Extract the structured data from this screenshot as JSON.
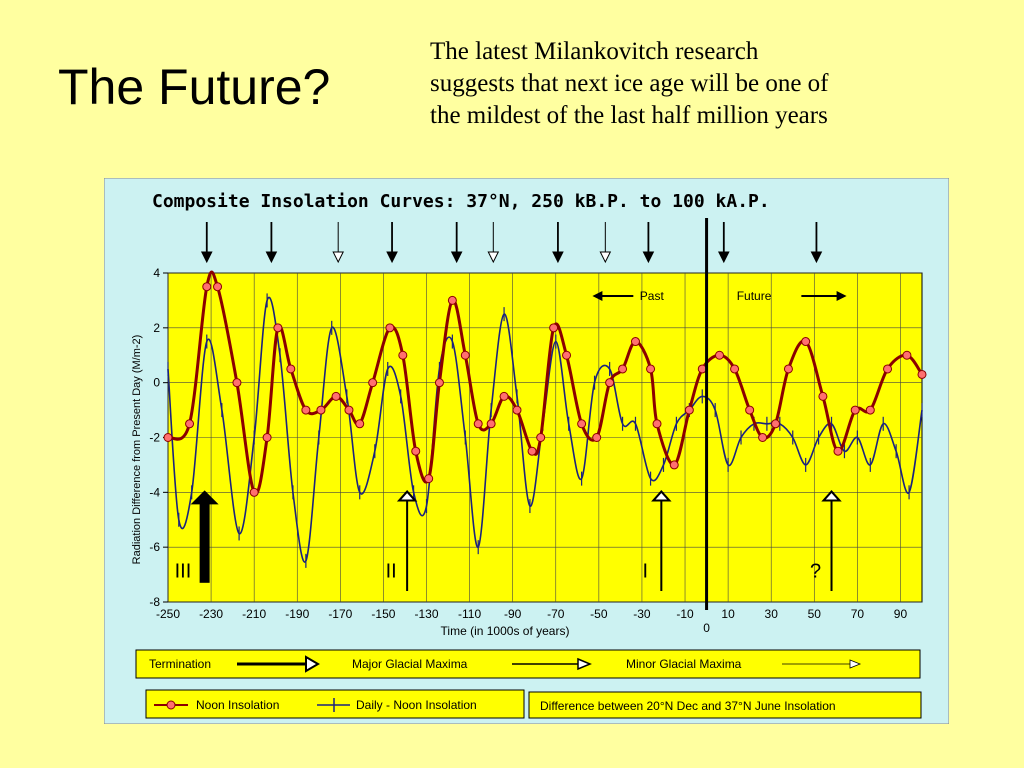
{
  "slide": {
    "title": "The Future?",
    "lines": [
      "The latest Milankovitch research",
      "suggests that next ice age will be one of",
      "the mildest of the last half million years"
    ]
  },
  "colors": {
    "background": "#ffffa0",
    "figure_background": "#ccf2f2",
    "plot_background": "#ffff00",
    "legend_background": "#ffff00",
    "noon": "#8b0000",
    "noon_marker": "#ff7070",
    "daily": "#1a237e"
  },
  "chart_data": {
    "type": "line",
    "title": "Composite Insolation Curves: 37°N, 250 kB.P. to 100 kA.P.",
    "xlabel": "Time (in 1000s of years)",
    "ylabel": "Radiation Difference from Present Day (M/m-2)",
    "xlim": [
      -250,
      100
    ],
    "ylim": [
      -8,
      4
    ],
    "yticks": [
      "4",
      "2",
      "0",
      "-2",
      "-4",
      "-6",
      "-8"
    ],
    "xticks": [
      "-250",
      "-230",
      "-210",
      "-190",
      "-170",
      "-150",
      "-130",
      "-110",
      "-90",
      "-70",
      "-50",
      "-30",
      "-10",
      "10",
      "30",
      "50",
      "70",
      "90"
    ],
    "zero_label": "0",
    "grid": true,
    "present_line_x": 0,
    "series": [
      {
        "name": "Noon Insolation",
        "x": [
          -250,
          -240,
          -232,
          -227,
          -218,
          -210,
          -204,
          -199,
          -193,
          -186,
          -179,
          -172,
          -166,
          -161,
          -155,
          -147,
          -141,
          -135,
          -129,
          -124,
          -118,
          -112,
          -106,
          -100,
          -94,
          -88,
          -81,
          -77,
          -71,
          -65,
          -58,
          -51,
          -45,
          -39,
          -33,
          -26,
          -23,
          -15,
          -8,
          -2,
          6,
          13,
          20,
          26,
          32,
          38,
          46,
          54,
          61,
          69,
          76,
          84,
          93,
          100
        ],
        "y": [
          -2,
          -1.5,
          3.5,
          3.5,
          0,
          -4,
          -2,
          2,
          0.5,
          -1,
          -1,
          -0.5,
          -1,
          -1.5,
          0,
          2,
          1,
          -2.5,
          -3.5,
          0,
          3,
          1,
          -1.5,
          -1.5,
          -0.5,
          -1,
          -2.5,
          -2,
          2,
          1,
          -1.5,
          -2,
          0,
          0.5,
          1.5,
          0.5,
          -1.5,
          -3,
          -1,
          0.5,
          1,
          0.5,
          -1,
          -2,
          -1.5,
          0.5,
          1.5,
          -0.5,
          -2.5,
          -1,
          -1,
          0.5,
          1,
          0.3
        ]
      },
      {
        "name": "Daily - Noon Insolation",
        "x": [
          -250,
          -245,
          -239,
          -232,
          -225,
          -217,
          -210,
          -204,
          -198,
          -192,
          -186,
          -180,
          -174,
          -167,
          -161,
          -154,
          -148,
          -142,
          -136,
          -130,
          -124,
          -118,
          -112,
          -106,
          -100,
          -94,
          -88,
          -82,
          -76,
          -70,
          -64,
          -58,
          -52,
          -45,
          -39,
          -33,
          -26,
          -20,
          -14,
          -8,
          -2,
          4,
          10,
          16,
          22,
          28,
          34,
          40,
          46,
          52,
          58,
          64,
          70,
          76,
          82,
          88,
          94,
          100
        ],
        "y": [
          0.5,
          -5,
          -4,
          1.5,
          -1,
          -5.5,
          -2,
          3,
          1,
          -4,
          -6.5,
          -2,
          2,
          -0.5,
          -4,
          -2.5,
          0.5,
          -0.5,
          -4,
          -4.5,
          0.5,
          1.5,
          -2,
          -6,
          -1,
          2.5,
          -0.5,
          -4.5,
          -1.5,
          1.5,
          -1.5,
          -3.5,
          0,
          0.5,
          -1.5,
          -1.5,
          -3.5,
          -3,
          -1.5,
          -1,
          -0.5,
          -1,
          -3,
          -2,
          -1.5,
          -1.5,
          -1.5,
          -2,
          -3,
          -2,
          -1.5,
          -2.5,
          -2,
          -3,
          -1.5,
          -2.5,
          -4,
          -1
        ]
      }
    ],
    "arrows_top": [
      {
        "x": -232,
        "style": "filled"
      },
      {
        "x": -202,
        "style": "filled"
      },
      {
        "x": -171,
        "style": "open"
      },
      {
        "x": -146,
        "style": "filled"
      },
      {
        "x": -116,
        "style": "filled"
      },
      {
        "x": -99,
        "style": "open"
      },
      {
        "x": -69,
        "style": "filled"
      },
      {
        "x": -47,
        "style": "open"
      },
      {
        "x": -27,
        "style": "filled"
      },
      {
        "x": 8,
        "style": "filled"
      },
      {
        "x": 51,
        "style": "filled"
      }
    ],
    "terminations": [
      {
        "label": "III",
        "x": -233,
        "style": "thick"
      },
      {
        "label": "II",
        "x": -139,
        "style": "open"
      },
      {
        "label": "I",
        "x": -21,
        "style": "open"
      },
      {
        "label": "?",
        "x": 58,
        "style": "open"
      }
    ],
    "past_label": "Past",
    "future_label": "Future"
  },
  "legend": {
    "termination": "Termination",
    "major": "Major Glacial Maxima",
    "minor": "Minor Glacial Maxima",
    "noon": "Noon Insolation",
    "daily": "Daily - Noon Insolation",
    "difference": "Difference between 20°N Dec and 37°N June Insolation"
  }
}
